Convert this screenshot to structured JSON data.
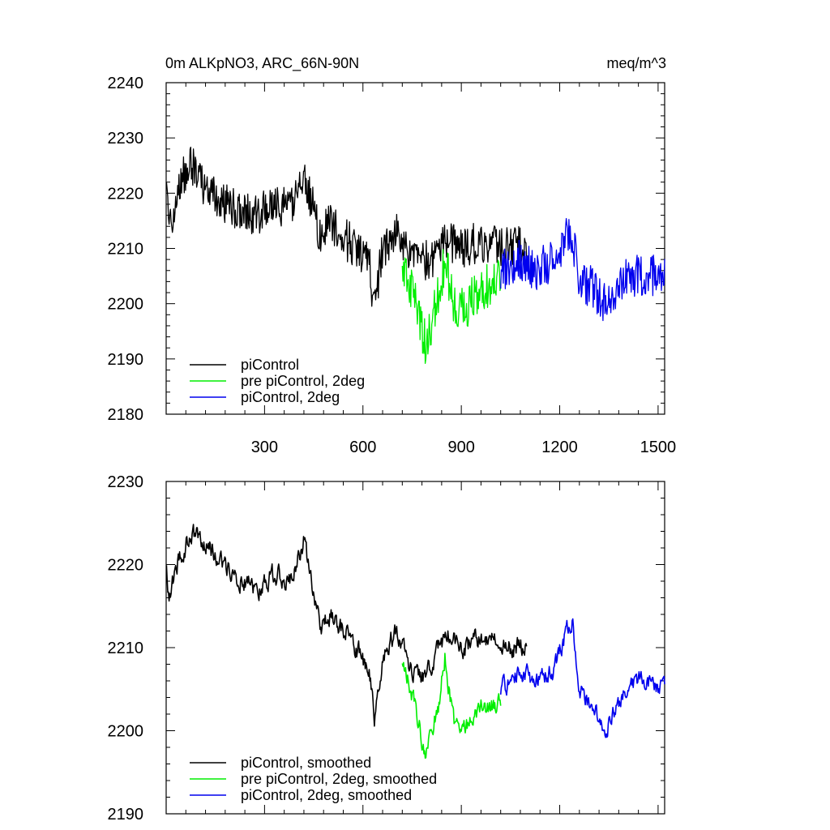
{
  "colors": {
    "piControl": "#000000",
    "pre_piControl_2deg": "#00ee00",
    "piControl_2deg": "#0000ee"
  },
  "chart_data": [
    {
      "type": "line",
      "title": "0m ALKpNO3, ARC_66N-90N",
      "units": "meq/m^3",
      "xlim": [
        0,
        1520
      ],
      "ylim": [
        2180,
        2240
      ],
      "xticks": [
        300,
        600,
        900,
        1200,
        1500
      ],
      "yticks": [
        2180,
        2190,
        2200,
        2210,
        2220,
        2230,
        2240
      ],
      "xtick_labels": [
        "300",
        "600",
        "900",
        "1200",
        "1500"
      ],
      "ytick_labels": [
        "2180",
        "2190",
        "2200",
        "2210",
        "2220",
        "2230",
        "2240"
      ],
      "legend_position": "bottom-left",
      "series": [
        {
          "name": "piControl",
          "color": "#000000",
          "x_range": [
            1,
            1100
          ],
          "jitter": 3.8,
          "smooth": false,
          "anchors": [
            [
              1,
              2219
            ],
            [
              10,
              2214
            ],
            [
              40,
              2222
            ],
            [
              80,
              2225
            ],
            [
              130,
              2220
            ],
            [
              180,
              2218
            ],
            [
              230,
              2217
            ],
            [
              280,
              2216
            ],
            [
              330,
              2218
            ],
            [
              380,
              2217
            ],
            [
              420,
              2224
            ],
            [
              470,
              2212
            ],
            [
              500,
              2215
            ],
            [
              540,
              2212
            ],
            [
              580,
              2210
            ],
            [
              620,
              2207
            ],
            [
              635,
              2199
            ],
            [
              660,
              2210
            ],
            [
              700,
              2213
            ],
            [
              740,
              2210
            ],
            [
              780,
              2207
            ],
            [
              820,
              2209
            ],
            [
              860,
              2211
            ],
            [
              900,
              2210
            ],
            [
              950,
              2211
            ],
            [
              1000,
              2211
            ],
            [
              1050,
              2210
            ],
            [
              1100,
              2211
            ]
          ]
        },
        {
          "name": "pre piControl, 2deg",
          "color": "#00ee00",
          "x_range": [
            720,
            1020
          ],
          "jitter": 4.2,
          "smooth": false,
          "anchors": [
            [
              720,
              2207
            ],
            [
              760,
              2200
            ],
            [
              790,
              2193
            ],
            [
              830,
              2201
            ],
            [
              850,
              2208
            ],
            [
              880,
              2199
            ],
            [
              920,
              2200
            ],
            [
              960,
              2203
            ],
            [
              1020,
              2204
            ]
          ]
        },
        {
          "name": "piControl, 2deg",
          "color": "#0000ee",
          "x_range": [
            1020,
            1520
          ],
          "jitter": 3.8,
          "smooth": false,
          "anchors": [
            [
              1020,
              2206
            ],
            [
              1080,
              2208
            ],
            [
              1130,
              2206
            ],
            [
              1180,
              2208
            ],
            [
              1220,
              2212
            ],
            [
              1240,
              2212
            ],
            [
              1260,
              2204
            ],
            [
              1300,
              2203
            ],
            [
              1340,
              2200
            ],
            [
              1400,
              2205
            ],
            [
              1450,
              2205
            ],
            [
              1520,
              2205
            ]
          ]
        }
      ],
      "legend": [
        "piControl",
        "pre piControl, 2deg",
        "piControl, 2deg"
      ]
    },
    {
      "type": "line",
      "title": "",
      "xlim": [
        0,
        1520
      ],
      "ylim": [
        2190,
        2230
      ],
      "xticks": [
        300,
        600,
        900,
        1200,
        1500
      ],
      "yticks": [
        2190,
        2200,
        2210,
        2220,
        2230
      ],
      "ytick_labels": [
        "2190",
        "2200",
        "2210",
        "2220",
        "2230"
      ],
      "legend_position": "bottom-left",
      "series": [
        {
          "name": "piControl, smoothed",
          "color": "#000000",
          "x_range": [
            1,
            1100
          ],
          "jitter": 2.2,
          "smooth": true,
          "anchors": [
            [
              1,
              2219
            ],
            [
              10,
              2216
            ],
            [
              40,
              2221
            ],
            [
              80,
              2224
            ],
            [
              130,
              2222
            ],
            [
              180,
              2220
            ],
            [
              230,
              2218
            ],
            [
              280,
              2217
            ],
            [
              330,
              2219
            ],
            [
              380,
              2218
            ],
            [
              420,
              2223
            ],
            [
              470,
              2212
            ],
            [
              500,
              2214
            ],
            [
              540,
              2212
            ],
            [
              580,
              2210
            ],
            [
              620,
              2207
            ],
            [
              635,
              2201
            ],
            [
              660,
              2209
            ],
            [
              700,
              2212
            ],
            [
              740,
              2208
            ],
            [
              780,
              2206
            ],
            [
              820,
              2209
            ],
            [
              860,
              2212
            ],
            [
              900,
              2210
            ],
            [
              950,
              2211
            ],
            [
              1000,
              2211
            ],
            [
              1050,
              2210
            ],
            [
              1100,
              2210
            ]
          ]
        },
        {
          "name": "pre piControl, 2deg, smoothed",
          "color": "#00ee00",
          "x_range": [
            720,
            1020
          ],
          "jitter": 2.2,
          "smooth": true,
          "anchors": [
            [
              720,
              2208
            ],
            [
              760,
              2203
            ],
            [
              790,
              2197
            ],
            [
              830,
              2203
            ],
            [
              850,
              2209
            ],
            [
              880,
              2200
            ],
            [
              920,
              2201
            ],
            [
              960,
              2203
            ],
            [
              1020,
              2203
            ]
          ]
        },
        {
          "name": "piControl, 2deg, smoothed",
          "color": "#0000ee",
          "x_range": [
            1020,
            1520
          ],
          "jitter": 2.0,
          "smooth": true,
          "anchors": [
            [
              1020,
              2205
            ],
            [
              1080,
              2207
            ],
            [
              1130,
              2206
            ],
            [
              1180,
              2207
            ],
            [
              1220,
              2212
            ],
            [
              1240,
              2213
            ],
            [
              1260,
              2205
            ],
            [
              1300,
              2203
            ],
            [
              1340,
              2200
            ],
            [
              1400,
              2205
            ],
            [
              1450,
              2206
            ],
            [
              1520,
              2205
            ]
          ]
        }
      ],
      "legend": [
        "piControl, smoothed",
        "pre piControl, 2deg, smoothed",
        "piControl, 2deg, smoothed"
      ]
    }
  ]
}
